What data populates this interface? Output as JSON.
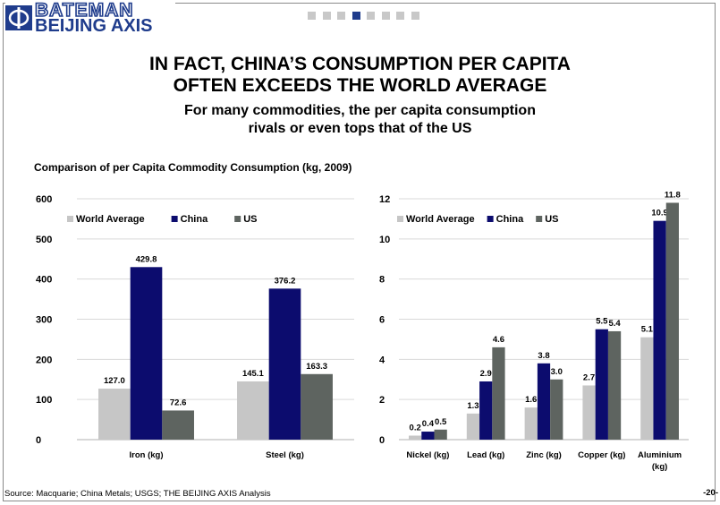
{
  "logo": {
    "line1": "BATEMAN",
    "line2": "BEIJING AXIS"
  },
  "pager": {
    "count": 8,
    "active": 3
  },
  "slide": {
    "title_line1": "IN FACT, CHINA’S CONSUMPTION PER CAPITA",
    "title_line2": "OFTEN EXCEEDS THE WORLD AVERAGE",
    "subtitle_line1": "For many commodities, the per capita consumption",
    "subtitle_line2": "rivals or even tops that of the US",
    "chart_caption": "Comparison of per Capita Commodity Consumption (kg, 2009)",
    "source": "Source: Macquarie; China Metals; USGS; THE BEIJING AXIS Analysis",
    "page_number": "-20-"
  },
  "colors": {
    "World Average": "#c6c6c6",
    "China": "#0c0c6e",
    "US": "#5e6460"
  },
  "chart_data": [
    {
      "type": "bar",
      "categories": [
        "Iron (kg)",
        "Steel (kg)"
      ],
      "series": [
        {
          "name": "World Average",
          "values": [
            127.0,
            145.1
          ]
        },
        {
          "name": "China",
          "values": [
            429.8,
            376.2
          ]
        },
        {
          "name": "US",
          "values": [
            72.6,
            163.3
          ]
        }
      ],
      "ylim": [
        0,
        600
      ],
      "yticks": [
        0,
        100,
        200,
        300,
        400,
        500,
        600
      ],
      "grid": true,
      "legend": "top-left"
    },
    {
      "type": "bar",
      "categories": [
        "Nickel (kg)",
        "Lead  (kg)",
        "Zinc (kg)",
        "Copper (kg)",
        "Aluminium (kg)"
      ],
      "series": [
        {
          "name": "World Average",
          "values": [
            0.2,
            1.3,
            1.6,
            2.7,
            5.1
          ]
        },
        {
          "name": "China",
          "values": [
            0.4,
            2.9,
            3.8,
            5.5,
            10.9
          ]
        },
        {
          "name": "US",
          "values": [
            0.5,
            4.6,
            3.0,
            5.4,
            11.8
          ]
        }
      ],
      "ylim": [
        0,
        12
      ],
      "yticks": [
        0,
        2,
        4,
        6,
        8,
        10,
        12
      ],
      "grid": true,
      "legend": "top-left"
    }
  ]
}
